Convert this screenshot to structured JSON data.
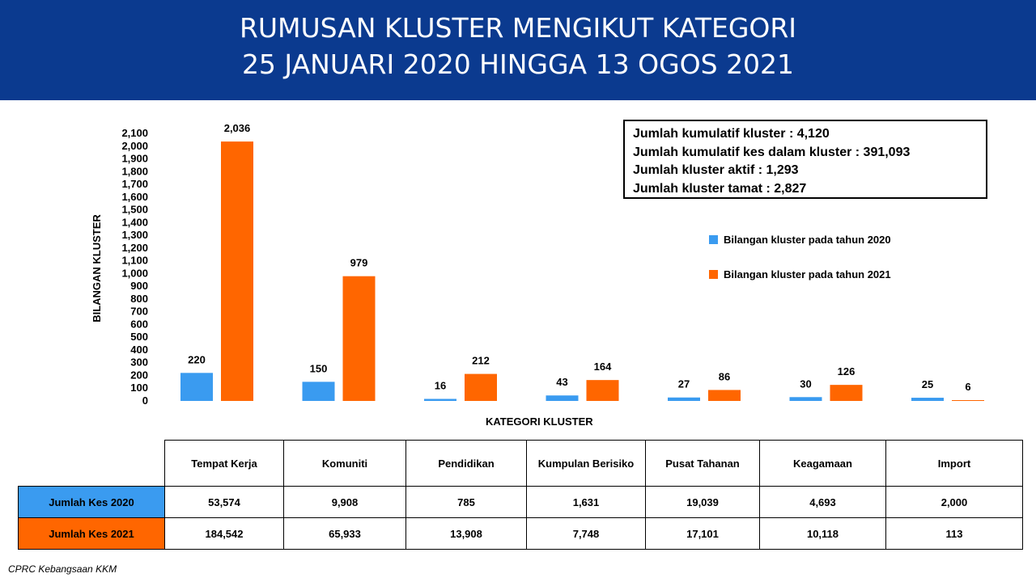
{
  "header": {
    "title_line1": "RUMUSAN KLUSTER MENGIKUT KATEGORI",
    "title_line2": "25 JANUARI 2020 HINGGA 13 OGOS 2021",
    "background_color": "#0b3a8f"
  },
  "chart_data": {
    "type": "bar",
    "categories": [
      "Tempat Kerja",
      "Komuniti",
      "Pendidikan",
      "Kumpulan Berisiko",
      "Pusat Tahanan",
      "Keagamaan",
      "Import"
    ],
    "series": [
      {
        "name": "Bilangan kluster pada tahun 2020",
        "color": "#3a9bf0",
        "values": [
          220,
          150,
          16,
          43,
          27,
          30,
          25
        ]
      },
      {
        "name": "Bilangan kluster pada tahun 2021",
        "color": "#ff6600",
        "values": [
          2036,
          979,
          212,
          164,
          86,
          126,
          6
        ]
      }
    ],
    "data_labels": {
      "s2020": [
        "220",
        "150",
        "16",
        "43",
        "27",
        "30",
        "25"
      ],
      "s2021": [
        "2,036",
        "979",
        "212",
        "164",
        "86",
        "126",
        "6"
      ]
    },
    "xlabel": "KATEGORI KLUSTER",
    "ylabel": "BILANGAN KLUSTER",
    "ylim": [
      0,
      2100
    ],
    "yticks": [
      "0",
      "100",
      "200",
      "300",
      "400",
      "500",
      "600",
      "700",
      "800",
      "900",
      "1,000",
      "1,100",
      "1,200",
      "1,300",
      "1,400",
      "1,500",
      "1,600",
      "1,700",
      "1,800",
      "1,900",
      "2,000",
      "2,100"
    ],
    "grid": false,
    "legend_position": "right"
  },
  "infobox": {
    "line1": "Jumlah kumulatif kluster : 4,120",
    "line2": "Jumlah kumulatif kes dalam kluster : 391,093",
    "line3": "Jumlah kluster aktif : 1,293",
    "line4": "Jumlah kluster tamat : 2,827"
  },
  "legend": {
    "item1": "Bilangan kluster pada tahun 2020",
    "item2": "Bilangan kluster pada tahun 2021"
  },
  "table": {
    "headers": [
      "Tempat Kerja",
      "Komuniti",
      "Pendidikan",
      "Kumpulan Berisiko",
      "Pusat Tahanan",
      "Keagamaan",
      "Import"
    ],
    "rows": [
      {
        "label": "Jumlah Kes 2020",
        "color": "#3a9bf0",
        "values": [
          "53,574",
          "9,908",
          "785",
          "1,631",
          "19,039",
          "4,693",
          "2,000"
        ]
      },
      {
        "label": "Jumlah Kes 2021",
        "color": "#ff6600",
        "values": [
          "184,542",
          "65,933",
          "13,908",
          "7,748",
          "17,101",
          "10,118",
          "113"
        ]
      }
    ]
  },
  "footer": {
    "source": "CPRC Kebangsaan KKM"
  }
}
